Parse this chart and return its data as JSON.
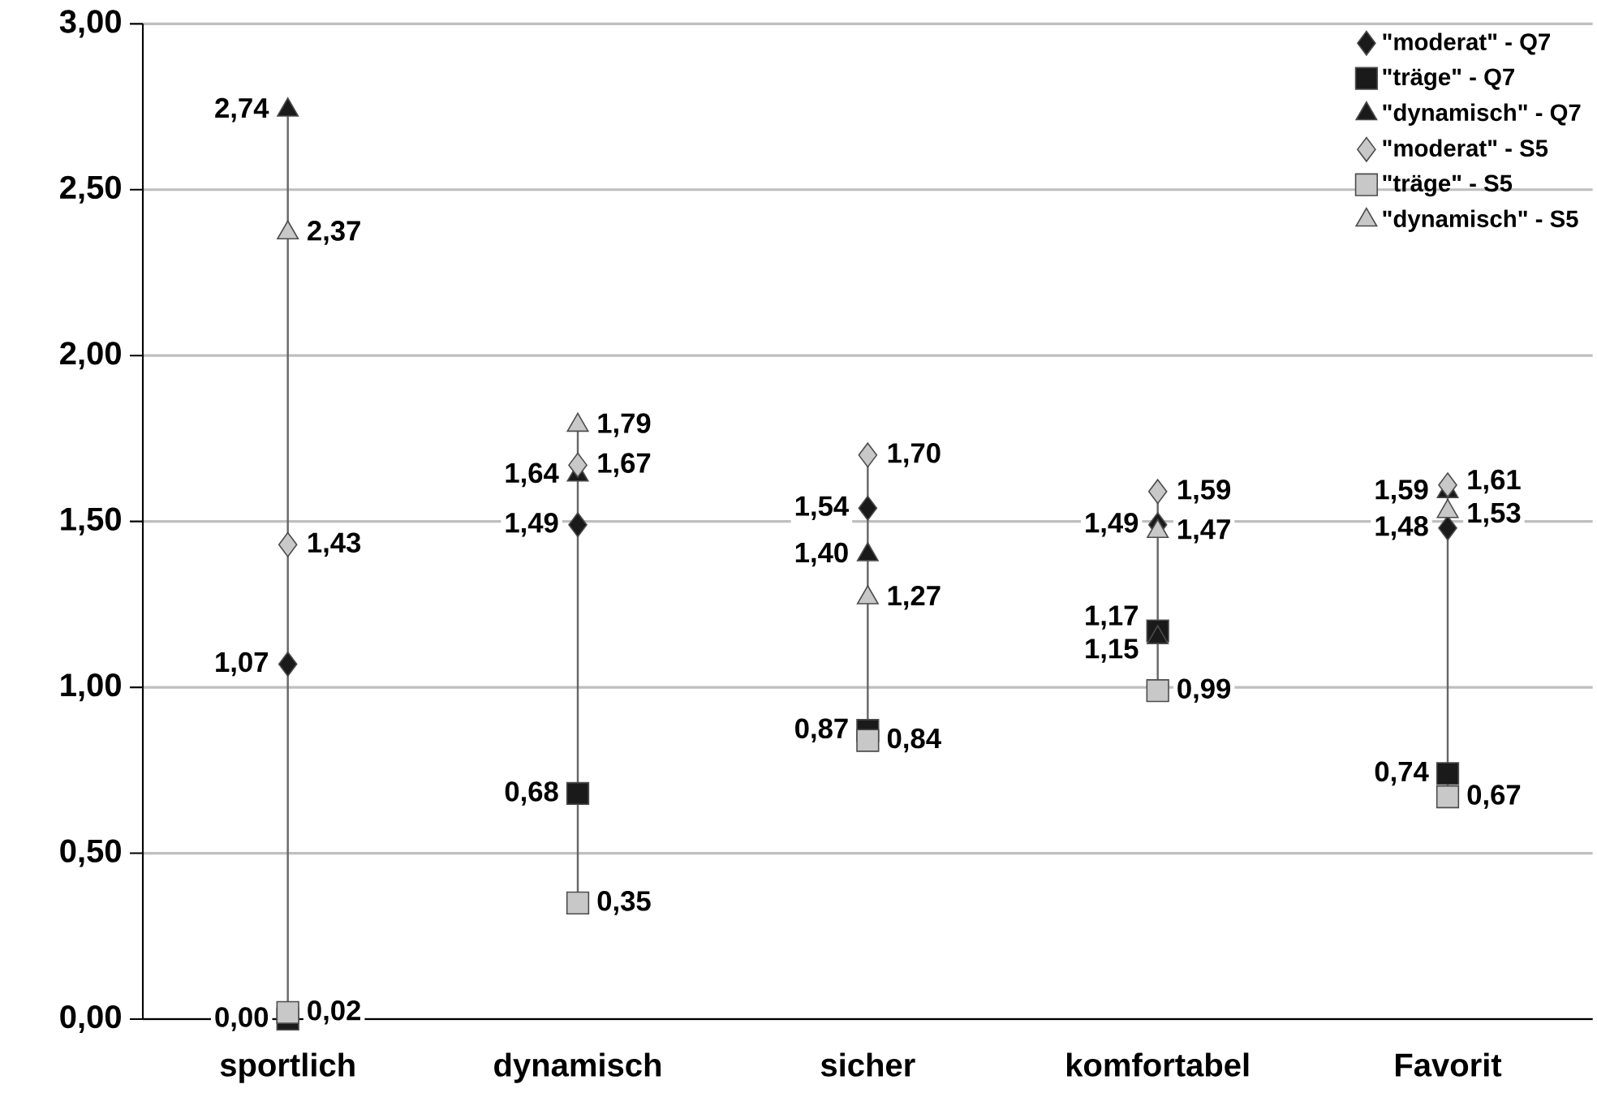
{
  "chart_data": {
    "type": "scatter",
    "categories": [
      "sportlich",
      "dynamisch",
      "sicher",
      "komfortabel",
      "Favorit"
    ],
    "series": [
      {
        "name": "\"moderat\" - Q7",
        "color": "#1a1a1a",
        "marker": "diamond",
        "values": [
          1.07,
          1.49,
          1.54,
          1.49,
          1.48
        ],
        "value_labels": [
          "1,07",
          "1,49",
          "1,54",
          "1,49",
          "1,48"
        ]
      },
      {
        "name": "\"träge\" - Q7",
        "color": "#1a1a1a",
        "marker": "square",
        "values": [
          0.0,
          0.68,
          0.87,
          1.17,
          0.74
        ],
        "value_labels": [
          "0,00",
          "0,68",
          "0,87",
          "1,17",
          "0,74"
        ]
      },
      {
        "name": "\"dynamisch\" - Q7",
        "color": "#1a1a1a",
        "marker": "triangle",
        "values": [
          2.74,
          1.64,
          1.4,
          1.15,
          1.59
        ],
        "value_labels": [
          "2,74",
          "1,64",
          "1,40",
          "1,15",
          "1,59"
        ]
      },
      {
        "name": "\"moderat\" - S5",
        "color": "#c8c8c8",
        "marker": "diamond",
        "values": [
          1.43,
          1.67,
          1.7,
          1.59,
          1.61
        ],
        "value_labels": [
          "1,43",
          "1,67",
          "1,70",
          "1,59",
          "1,61"
        ]
      },
      {
        "name": "\"träge\" - S5",
        "color": "#c8c8c8",
        "marker": "square",
        "values": [
          0.02,
          0.35,
          0.84,
          0.99,
          0.67
        ],
        "value_labels": [
          "0,02",
          "0,35",
          "0,84",
          "0,99",
          "0,67"
        ]
      },
      {
        "name": "\"dynamisch\" - S5",
        "color": "#c8c8c8",
        "marker": "triangle",
        "values": [
          2.37,
          1.79,
          1.27,
          1.47,
          1.53
        ],
        "value_labels": [
          "2,37",
          "1,79",
          "1,27",
          "1,47",
          "1,53"
        ]
      }
    ],
    "ylim": [
      0,
      3
    ],
    "yticks": [
      {
        "value": 0,
        "label": "0,00"
      },
      {
        "value": 0.5,
        "label": "0,50"
      },
      {
        "value": 1,
        "label": "1,00"
      },
      {
        "value": 1.5,
        "label": "1,50"
      },
      {
        "value": 2,
        "label": "2,00"
      },
      {
        "value": 2.5,
        "label": "2,50"
      },
      {
        "value": 3,
        "label": "3,00"
      }
    ],
    "grid": "y",
    "legend": "top right"
  }
}
